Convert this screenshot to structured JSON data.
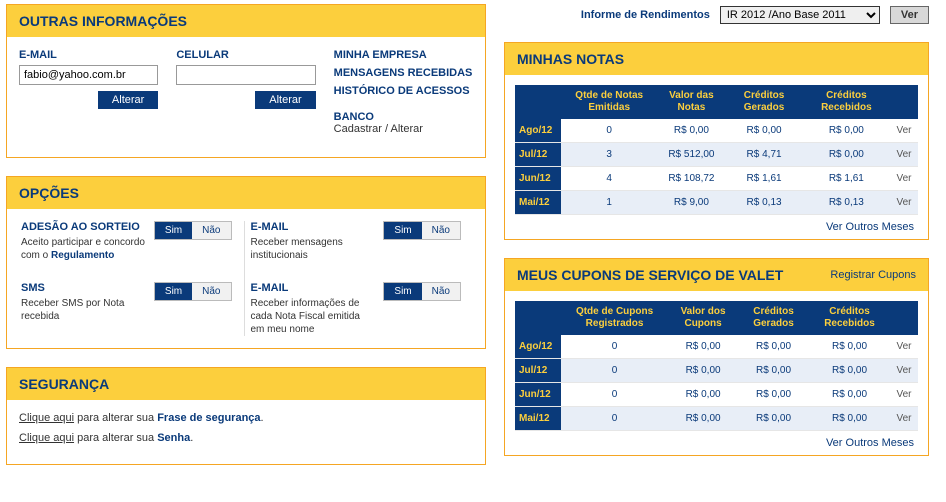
{
  "outras": {
    "title": "OUTRAS INFORMAÇÕES",
    "email_label": "E-MAIL",
    "email_value": "fabio@yahoo.com.br",
    "celular_label": "CELULAR",
    "celular_value": "",
    "alterar_label": "Alterar",
    "links": {
      "l1": "MINHA EMPRESA",
      "l2": "MENSAGENS RECEBIDAS",
      "l3": "HISTÓRICO DE ACESSOS",
      "l4": "BANCO",
      "l4_sub": "Cadastrar / Alterar"
    }
  },
  "opcoes": {
    "title": "OPÇÕES",
    "sim": "Sim",
    "nao": "Não",
    "sorteio": {
      "title": "ADESÃO AO SORTEIO",
      "desc_pre": "Aceito participar e concordo com o ",
      "desc_bold": "Regulamento"
    },
    "sms": {
      "title": "SMS",
      "desc": "Receber SMS por Nota recebida"
    },
    "email1": {
      "title": "E-MAIL",
      "desc": "Receber mensagens institucionais"
    },
    "email2": {
      "title": "E-MAIL",
      "desc": "Receber informações de cada Nota Fiscal emitida em meu nome"
    }
  },
  "seguranca": {
    "title": "SEGURANÇA",
    "link_label": "Clique aqui",
    "line1_mid": " para alterar sua ",
    "line1_bold": "Frase de segurança",
    "line2_mid": " para alterar sua ",
    "line2_bold": "Senha",
    "dot": "."
  },
  "rend": {
    "label": "Informe de Rendimentos",
    "option": "IR 2012 /Ano Base 2011",
    "ver": "Ver"
  },
  "notas": {
    "title": "MINHAS NOTAS",
    "headers": {
      "h1": "Qtde de Notas Emitidas",
      "h2": "Valor das Notas",
      "h3": "Créditos Gerados",
      "h4": "Créditos Recebidos"
    },
    "rows": [
      {
        "m": "Ago/12",
        "q": "0",
        "v": "R$ 0,00",
        "cg": "R$ 0,00",
        "cr": "R$ 0,00"
      },
      {
        "m": "Jul/12",
        "q": "3",
        "v": "R$ 512,00",
        "cg": "R$ 4,71",
        "cr": "R$ 0,00"
      },
      {
        "m": "Jun/12",
        "q": "4",
        "v": "R$ 108,72",
        "cg": "R$ 1,61",
        "cr": "R$ 1,61"
      },
      {
        "m": "Mai/12",
        "q": "1",
        "v": "R$ 9,00",
        "cg": "R$ 0,13",
        "cr": "R$ 0,13"
      }
    ],
    "ver": "Ver",
    "ver_outros": "Ver Outros Meses"
  },
  "cupons": {
    "title": "MEUS CUPONS DE SERVIÇO DE VALET",
    "action": "Registrar Cupons",
    "headers": {
      "h1": "Qtde de Cupons Registrados",
      "h2": "Valor dos Cupons",
      "h3": "Créditos Gerados",
      "h4": "Créditos Recebidos"
    },
    "rows": [
      {
        "m": "Ago/12",
        "q": "0",
        "v": "R$ 0,00",
        "cg": "R$ 0,00",
        "cr": "R$ 0,00"
      },
      {
        "m": "Jul/12",
        "q": "0",
        "v": "R$ 0,00",
        "cg": "R$ 0,00",
        "cr": "R$ 0,00"
      },
      {
        "m": "Jun/12",
        "q": "0",
        "v": "R$ 0,00",
        "cg": "R$ 0,00",
        "cr": "R$ 0,00"
      },
      {
        "m": "Mai/12",
        "q": "0",
        "v": "R$ 0,00",
        "cg": "R$ 0,00",
        "cr": "R$ 0,00"
      }
    ],
    "ver": "Ver",
    "ver_outros": "Ver Outros Meses"
  }
}
